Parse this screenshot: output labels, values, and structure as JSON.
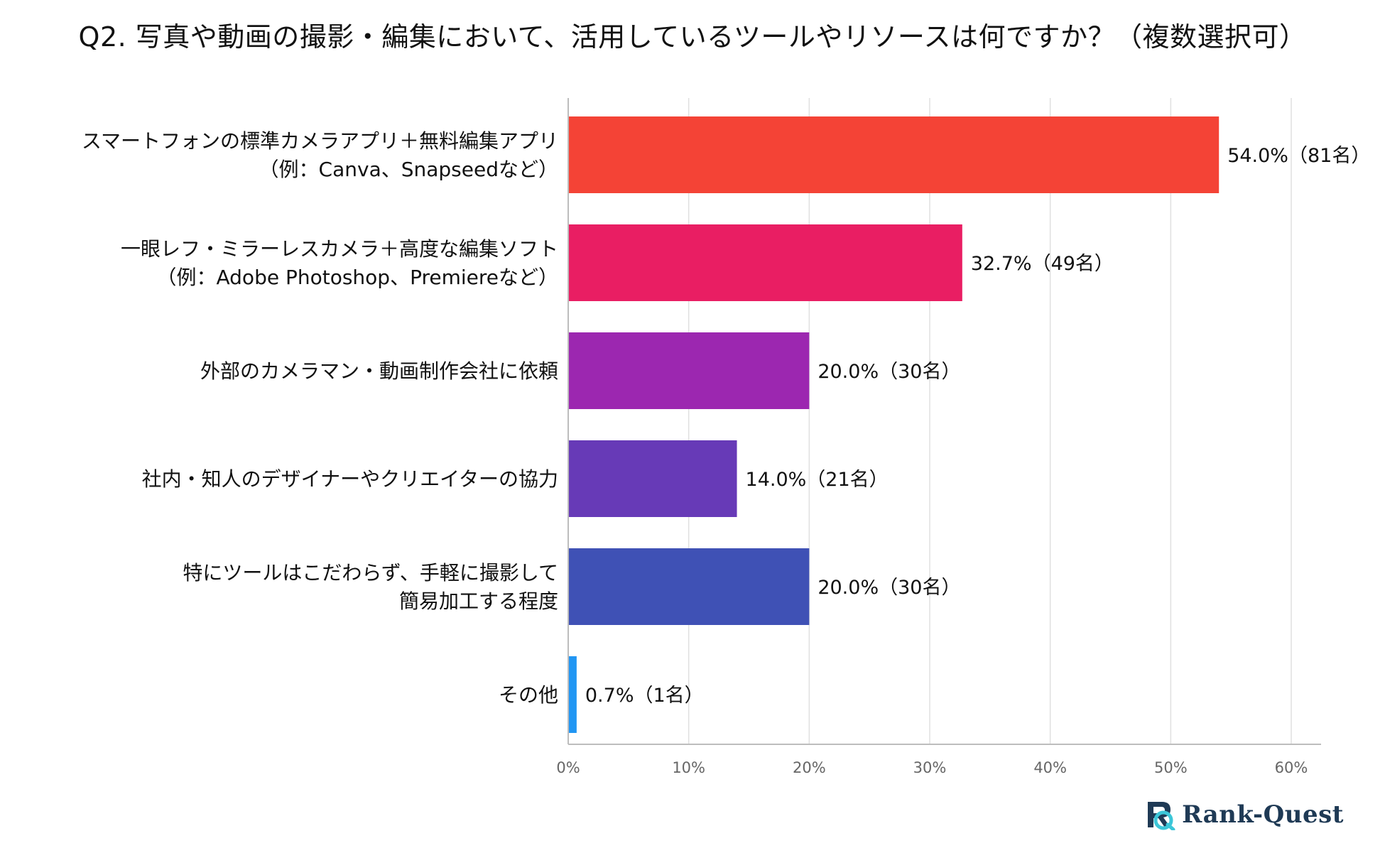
{
  "chart_data": {
    "type": "bar",
    "orientation": "horizontal",
    "title": "Q2. 写真や動画の撮影・編集において、活用しているツールやリソースは何ですか？（複数選択可）",
    "categories": [
      [
        "スマートフォンの標準カメラアプリ＋無料編集アプリ",
        "（例：Canva、Snapseedなど）"
      ],
      [
        "一眼レフ・ミラーレスカメラ＋高度な編集ソフト",
        "（例：Adobe Photoshop、Premiereなど）"
      ],
      [
        "外部のカメラマン・動画制作会社に依頼"
      ],
      [
        "社内・知人のデザイナーやクリエイターの協力"
      ],
      [
        "特にツールはこだわらず、手軽に撮影して",
        "簡易加工する程度"
      ],
      [
        "その他"
      ]
    ],
    "values": [
      54.0,
      32.7,
      20.0,
      14.0,
      20.0,
      0.7
    ],
    "value_labels": [
      "54.0%（81名）",
      "32.7%（49名）",
      "20.0%（30名）",
      "14.0%（21名）",
      "20.0%（30名）",
      "0.7%（1名）"
    ],
    "colors": [
      "#f44336",
      "#e91e63",
      "#9c27b0",
      "#673ab7",
      "#3f51b5",
      "#2196f3"
    ],
    "xlim": [
      0,
      60
    ],
    "xticks": [
      0,
      10,
      20,
      30,
      40,
      50,
      60
    ],
    "xtick_labels": [
      "0%",
      "10%",
      "20%",
      "30%",
      "40%",
      "50%",
      "60%"
    ],
    "xlabel": "",
    "ylabel": "",
    "grid": true
  },
  "brand": {
    "name": "Rank-Quest",
    "logo_colors": [
      "#1f3a55",
      "#3cc6d8"
    ]
  }
}
